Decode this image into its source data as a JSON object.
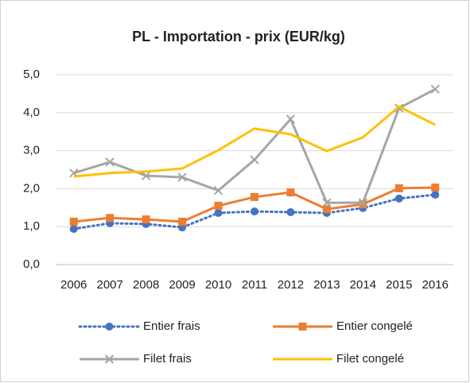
{
  "chart_data": {
    "type": "line",
    "title": "PL - Importation - prix (EUR/kg)",
    "categories": [
      "2006",
      "2007",
      "2008",
      "2009",
      "2010",
      "2011",
      "2012",
      "2013",
      "2014",
      "2015",
      "2016"
    ],
    "series": [
      {
        "name": "Entier frais",
        "color": "#4472c4",
        "marker": "circle",
        "dash": "dotted",
        "values": [
          0.94,
          1.09,
          1.07,
          0.98,
          1.36,
          1.4,
          1.38,
          1.36,
          1.49,
          1.74,
          1.84
        ]
      },
      {
        "name": "Entier congelé",
        "color": "#ed7d31",
        "marker": "square",
        "values": [
          1.13,
          1.23,
          1.19,
          1.13,
          1.55,
          1.78,
          1.9,
          1.46,
          1.59,
          2.01,
          2.03
        ]
      },
      {
        "name": "Filet frais",
        "color": "#a5a5a5",
        "marker": "x",
        "values": [
          2.41,
          2.7,
          2.34,
          2.3,
          1.95,
          2.76,
          3.83,
          1.63,
          1.63,
          4.12,
          4.62
        ]
      },
      {
        "name": "Filet congelé",
        "color": "#ffc000",
        "values": [
          2.32,
          2.41,
          2.45,
          2.53,
          3.01,
          3.58,
          3.43,
          2.99,
          3.35,
          4.16,
          3.68
        ]
      }
    ],
    "ylim": [
      0,
      5
    ],
    "yticks": [
      {
        "value": 0,
        "label": "0,0"
      },
      {
        "value": 1,
        "label": "1,0"
      },
      {
        "value": 2,
        "label": "2,0"
      },
      {
        "value": 3,
        "label": "3,0"
      },
      {
        "value": 4,
        "label": "4,0"
      },
      {
        "value": 5,
        "label": "5,0"
      }
    ],
    "grid": true,
    "legend": "bottom"
  }
}
